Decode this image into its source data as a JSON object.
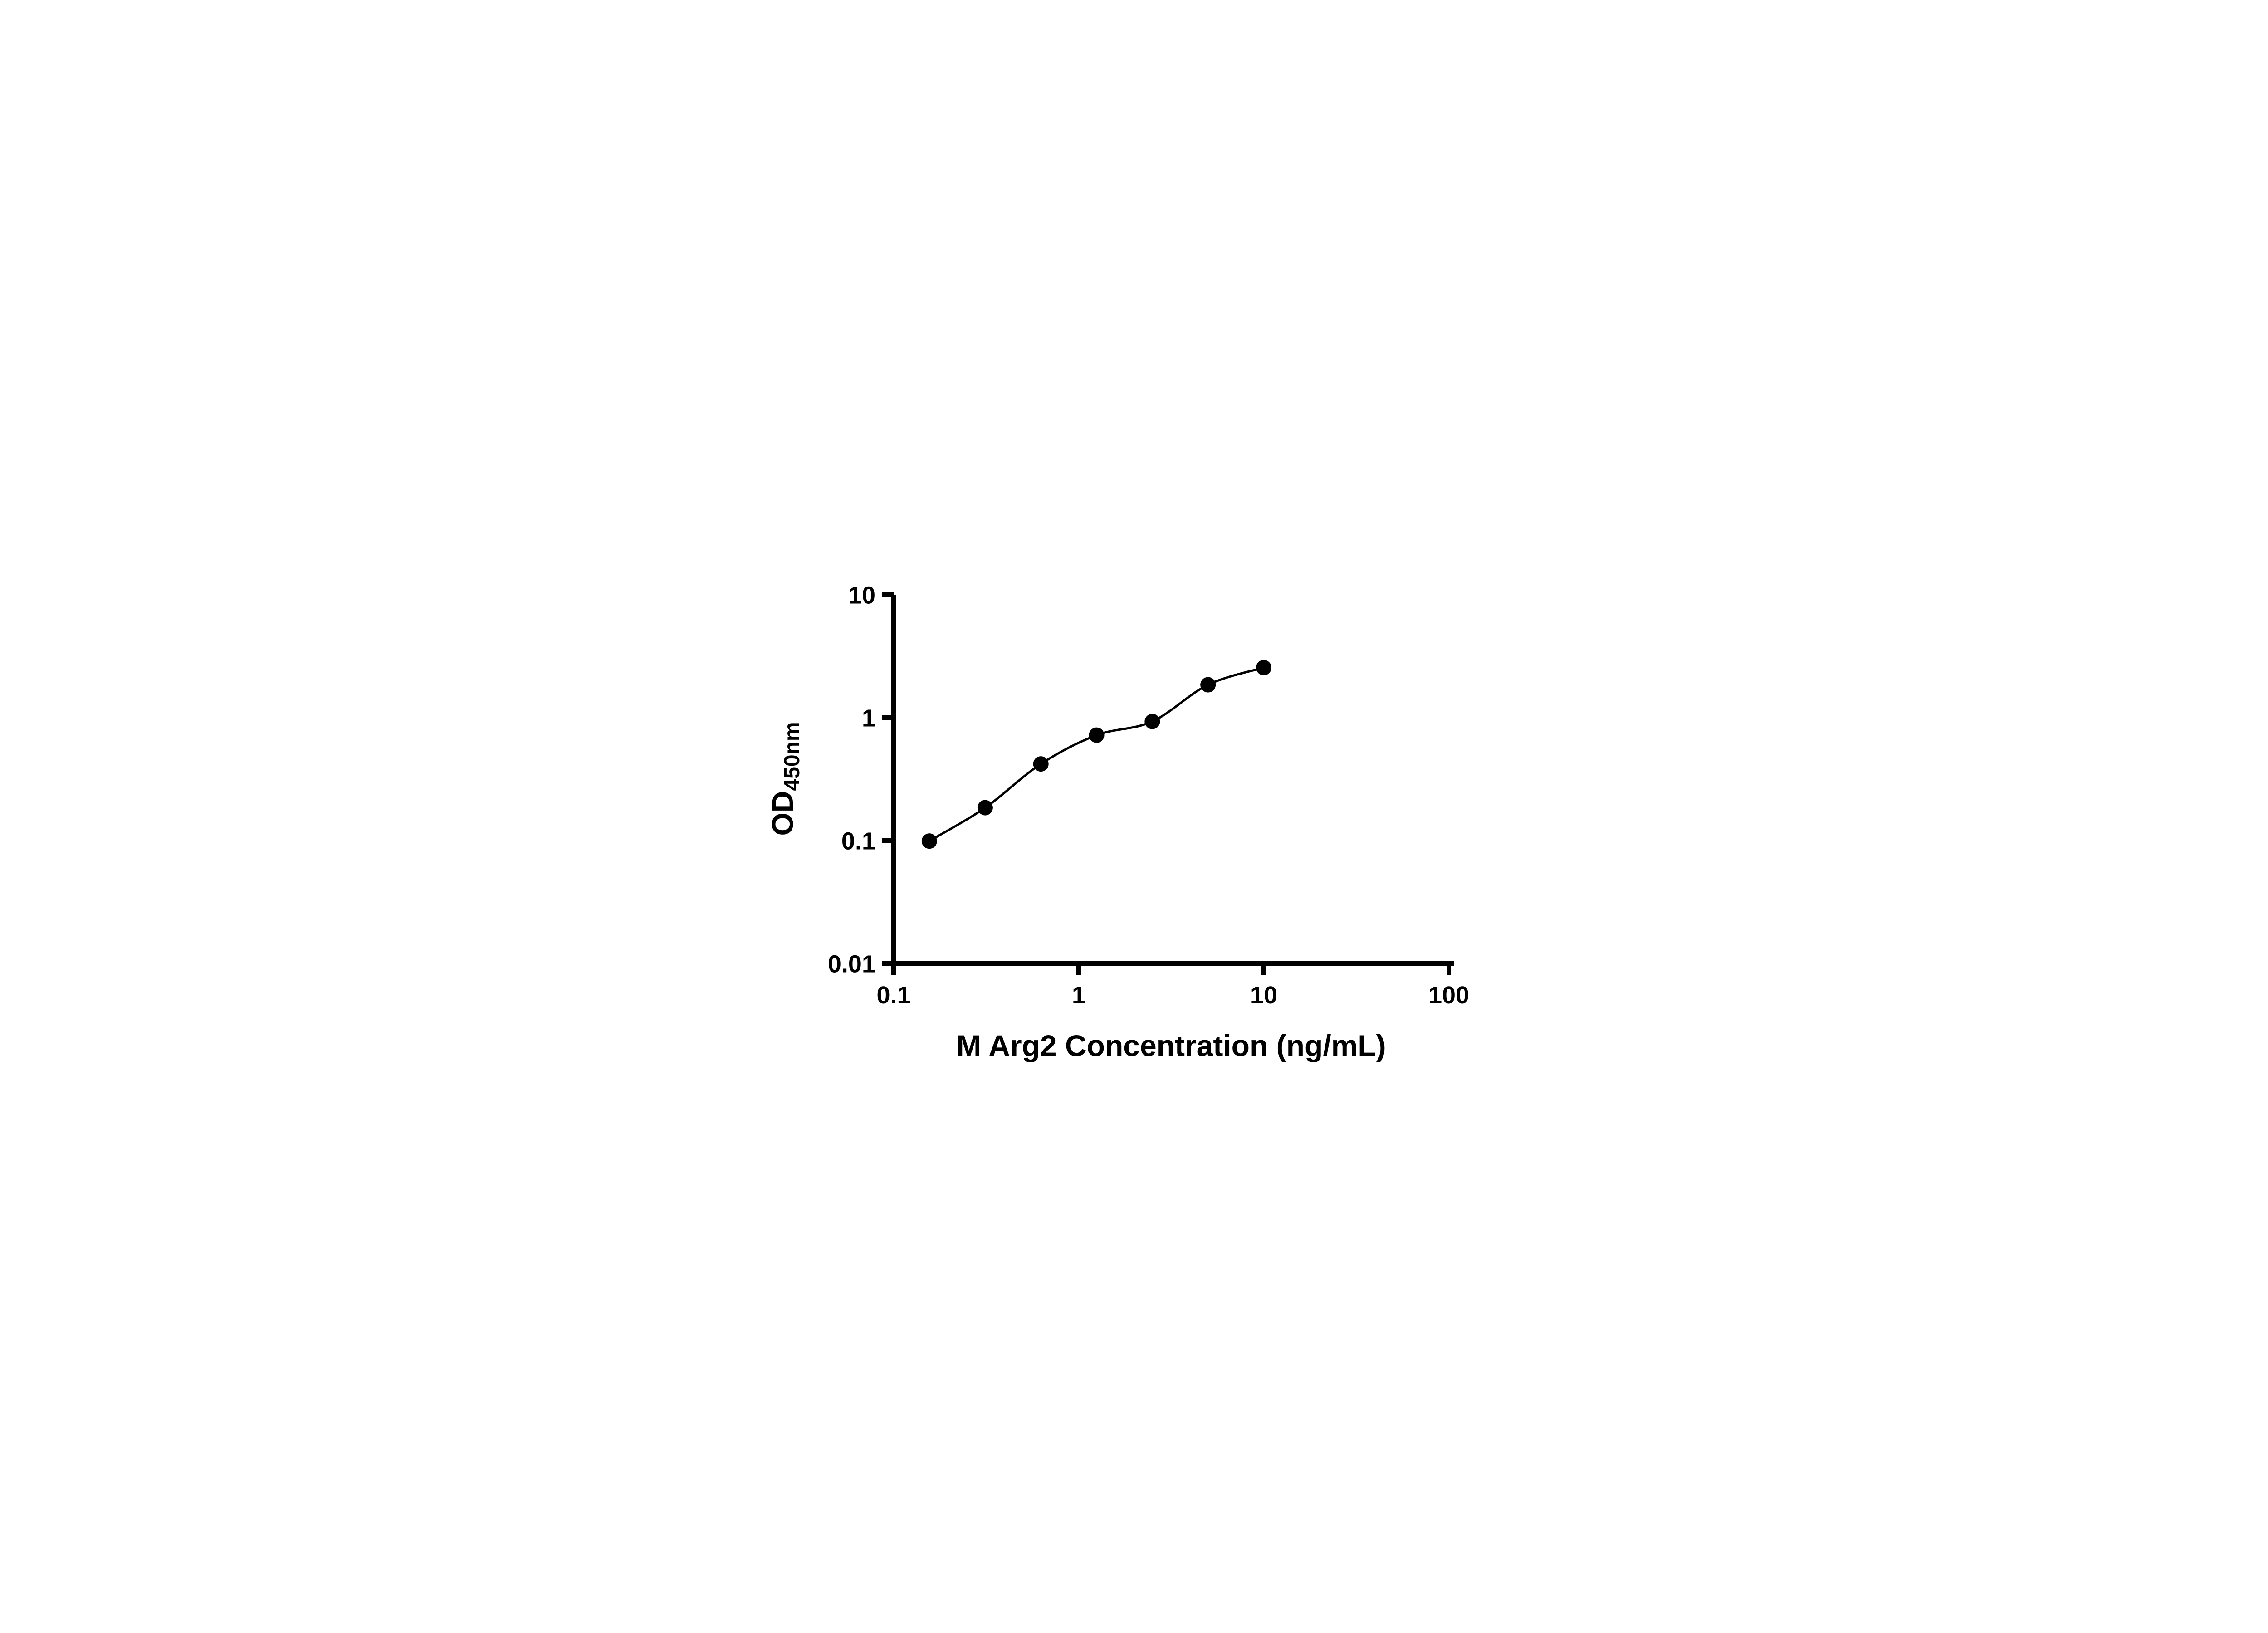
{
  "figure": {
    "x_axis_title": "M Arg2 Concentration (ng/mL)",
    "y_axis_title_main": "OD",
    "y_axis_title_sub": "450nm"
  },
  "chart_data": {
    "type": "scatter",
    "title": "",
    "xlabel": "M Arg2 Concentration (ng/mL)",
    "ylabel": "OD450nm",
    "x_scale": "log",
    "y_scale": "log",
    "xlim": [
      0.1,
      100
    ],
    "ylim": [
      0.01,
      10
    ],
    "x_ticks": [
      0.1,
      1,
      10,
      100
    ],
    "x_tick_labels": [
      "0.1",
      "1",
      "10",
      "100"
    ],
    "y_ticks": [
      0.01,
      0.1,
      1,
      10
    ],
    "y_tick_labels": [
      "0.01",
      "0.1",
      "1",
      "10"
    ],
    "x": [
      0.156,
      0.3125,
      0.625,
      1.25,
      2.5,
      5,
      10
    ],
    "y": [
      0.099,
      0.185,
      0.42,
      0.72,
      0.93,
      1.85,
      2.55
    ],
    "fit_line": true,
    "grid": false,
    "legend": false,
    "marker_color": "#000000",
    "line_color": "#000000",
    "axis_color": "#000000",
    "background_color": "#ffffff"
  }
}
